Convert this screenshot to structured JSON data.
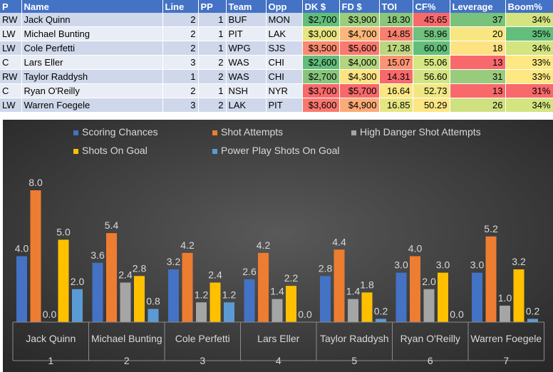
{
  "table": {
    "headers": [
      "P",
      "Name",
      "Line",
      "PP",
      "Team",
      "Opp",
      "DK $",
      "FD $",
      "TOI",
      "CF%",
      "Leverage",
      "Boom%"
    ],
    "rows": [
      {
        "p": "RW",
        "name": "Jack Quinn",
        "line": "2",
        "pp": "1",
        "team": "BUF",
        "opp": "MON",
        "dk": "$2,700",
        "fd": "$3,900",
        "toi": "18.30",
        "cf": "45.65",
        "lev": "37",
        "boom": "34%",
        "dk_color": "#63be7b",
        "fd_color": "#9bcd7d",
        "toi_color": "#8ac67c",
        "cf_color": "#f8696b",
        "lev_color": "#79c27b",
        "boom_color": "#d3e480"
      },
      {
        "p": "LW",
        "name": "Michael Bunting",
        "line": "2",
        "pp": "1",
        "team": "PIT",
        "opp": "LAK",
        "dk": "$3,000",
        "fd": "$4,700",
        "toi": "14.85",
        "cf": "58.96",
        "lev": "20",
        "boom": "35%",
        "dk_color": "#e7e582",
        "fd_color": "#fbb77a",
        "toi_color": "#f97f6f",
        "cf_color": "#6fc17c",
        "lev_color": "#f7e682",
        "boom_color": "#63be7b"
      },
      {
        "p": "LW",
        "name": "Cole Perfetti",
        "line": "2",
        "pp": "1",
        "team": "WPG",
        "opp": "SJS",
        "dk": "$3,500",
        "fd": "$5,600",
        "toi": "17.38",
        "cf": "60.00",
        "lev": "18",
        "boom": "34%",
        "dk_color": "#f98a71",
        "fd_color": "#f97a6f",
        "toi_color": "#bcd67f",
        "cf_color": "#63be7b",
        "lev_color": "#fde282",
        "boom_color": "#d3e480"
      },
      {
        "p": "C",
        "name": "Lars Eller",
        "line": "3",
        "pp": "2",
        "team": "WAS",
        "opp": "CHI",
        "dk": "$2,600",
        "fd": "$4,000",
        "toi": "15.07",
        "cf": "55.06",
        "lev": "13",
        "boom": "33%",
        "dk_color": "#63be7b",
        "fd_color": "#b4d57f",
        "toi_color": "#fa9473",
        "cf_color": "#d6e681",
        "lev_color": "#f8696b",
        "boom_color": "#fde883"
      },
      {
        "p": "RW",
        "name": "Taylor Raddysh",
        "line": "1",
        "pp": "2",
        "team": "WAS",
        "opp": "CHI",
        "dk": "$2,700",
        "fd": "$4,300",
        "toi": "14.31",
        "cf": "56.60",
        "lev": "31",
        "boom": "33%",
        "dk_color": "#88c57c",
        "fd_color": "#fde382",
        "toi_color": "#f8696b",
        "cf_color": "#d2e381",
        "lev_color": "#99cb7d",
        "boom_color": "#fde883"
      },
      {
        "p": "C",
        "name": "Ryan O'Reilly",
        "line": "2",
        "pp": "1",
        "team": "NSH",
        "opp": "NYR",
        "dk": "$3,700",
        "fd": "$5,700",
        "toi": "16.64",
        "cf": "52.73",
        "lev": "13",
        "boom": "31%",
        "dk_color": "#f8696b",
        "fd_color": "#f8696b",
        "toi_color": "#fce683",
        "cf_color": "#f0e783",
        "lev_color": "#f8696b",
        "boom_color": "#f8696b"
      },
      {
        "p": "LW",
        "name": "Warren Foegele",
        "line": "3",
        "pp": "2",
        "team": "LAK",
        "opp": "PIT",
        "dk": "$3,600",
        "fd": "$4,900",
        "toi": "16.85",
        "cf": "50.29",
        "lev": "26",
        "boom": "34%",
        "dk_color": "#f9786e",
        "fd_color": "#fbab77",
        "toi_color": "#e5e682",
        "cf_color": "#fce683",
        "lev_color": "#cfe081",
        "boom_color": "#d3e480"
      }
    ]
  },
  "chart_data": {
    "type": "bar",
    "categories": [
      "Jack Quinn",
      "Michael Bunting",
      "Cole Perfetti",
      "Lars Eller",
      "Taylor Raddysh",
      "Ryan O'Reilly",
      "Warren Foegele"
    ],
    "category_numbers": [
      "1",
      "2",
      "3",
      "4",
      "5",
      "6",
      "7"
    ],
    "series": [
      {
        "name": "Scoring Chances",
        "color": "#4472c4",
        "values": [
          4.0,
          3.6,
          3.2,
          2.6,
          2.8,
          3.0,
          3.0
        ]
      },
      {
        "name": "Shot Attempts",
        "color": "#ed7d31",
        "values": [
          8.0,
          5.4,
          4.2,
          4.2,
          4.4,
          4.0,
          5.2
        ]
      },
      {
        "name": "High Danger Shot Attempts",
        "color": "#a5a5a5",
        "values": [
          0.0,
          2.4,
          1.2,
          1.4,
          1.4,
          2.0,
          1.0
        ]
      },
      {
        "name": "Shots On Goal",
        "color": "#ffc000",
        "values": [
          5.0,
          2.8,
          2.4,
          2.2,
          1.8,
          3.0,
          3.2
        ]
      },
      {
        "name": "Power Play Shots On Goal",
        "color": "#5b9bd5",
        "values": [
          2.0,
          0.8,
          1.2,
          0.0,
          0.2,
          0.0,
          0.2
        ]
      }
    ],
    "ylim": [
      0,
      8.0
    ],
    "title": "",
    "xlabel": "",
    "ylabel": "",
    "legend": "top",
    "grid": false
  }
}
